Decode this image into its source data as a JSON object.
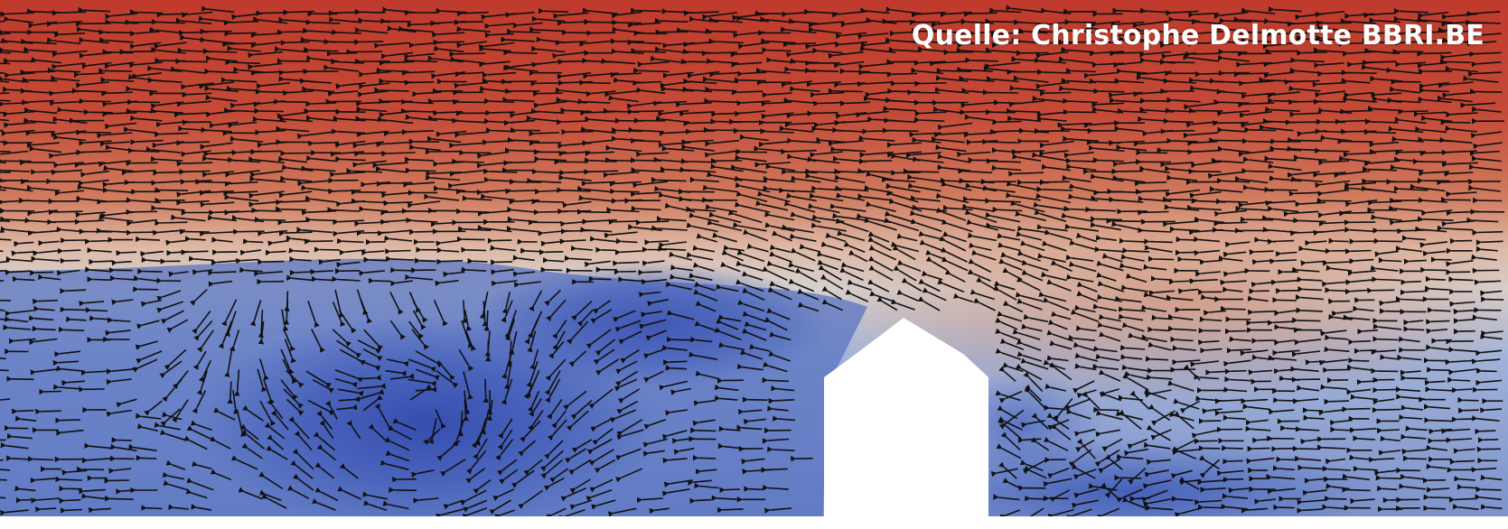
{
  "image": {
    "subject": "wind-flow-around-house",
    "credit": "Quelle: Christophe Delmotte BBRI.BE"
  },
  "colors": {
    "high_velocity": "#bf3d2e",
    "mid_velocity": "#d9a48a",
    "neutral": "#d8d6d4",
    "low_velocity": "#3a57b4",
    "arrows": "#111111",
    "building": "#ffffff",
    "credit_text": "#ffffff"
  },
  "icons": {
    "arrow_glyph": "left-arrow"
  }
}
